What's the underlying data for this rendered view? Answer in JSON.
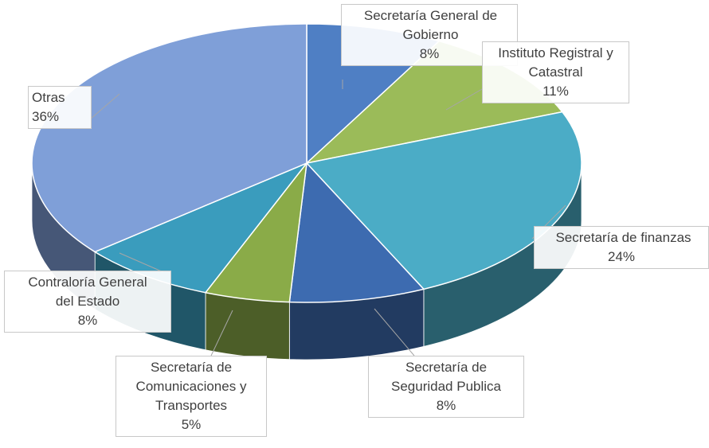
{
  "chart_data": {
    "type": "pie",
    "three_d": true,
    "categories": [
      "Secretaría General de Gobierno",
      "Instituto Registral y Catastral",
      "Secretaría de finanzas",
      "Secretaría de Seguridad Publica",
      "Secretaría de Comunicaciones y Transportes",
      "Contraloría General del Estado",
      "Otras"
    ],
    "values": [
      8,
      11,
      24,
      8,
      5,
      8,
      36
    ],
    "value_labels": [
      "8%",
      "11%",
      "24%",
      "8%",
      "5%",
      "8%",
      "36%"
    ],
    "colors": [
      "#4f7fc4",
      "#9bbb59",
      "#4bacc6",
      "#3d6bb0",
      "#8aab48",
      "#3a9cbd",
      "#7f9fd8"
    ]
  }
}
